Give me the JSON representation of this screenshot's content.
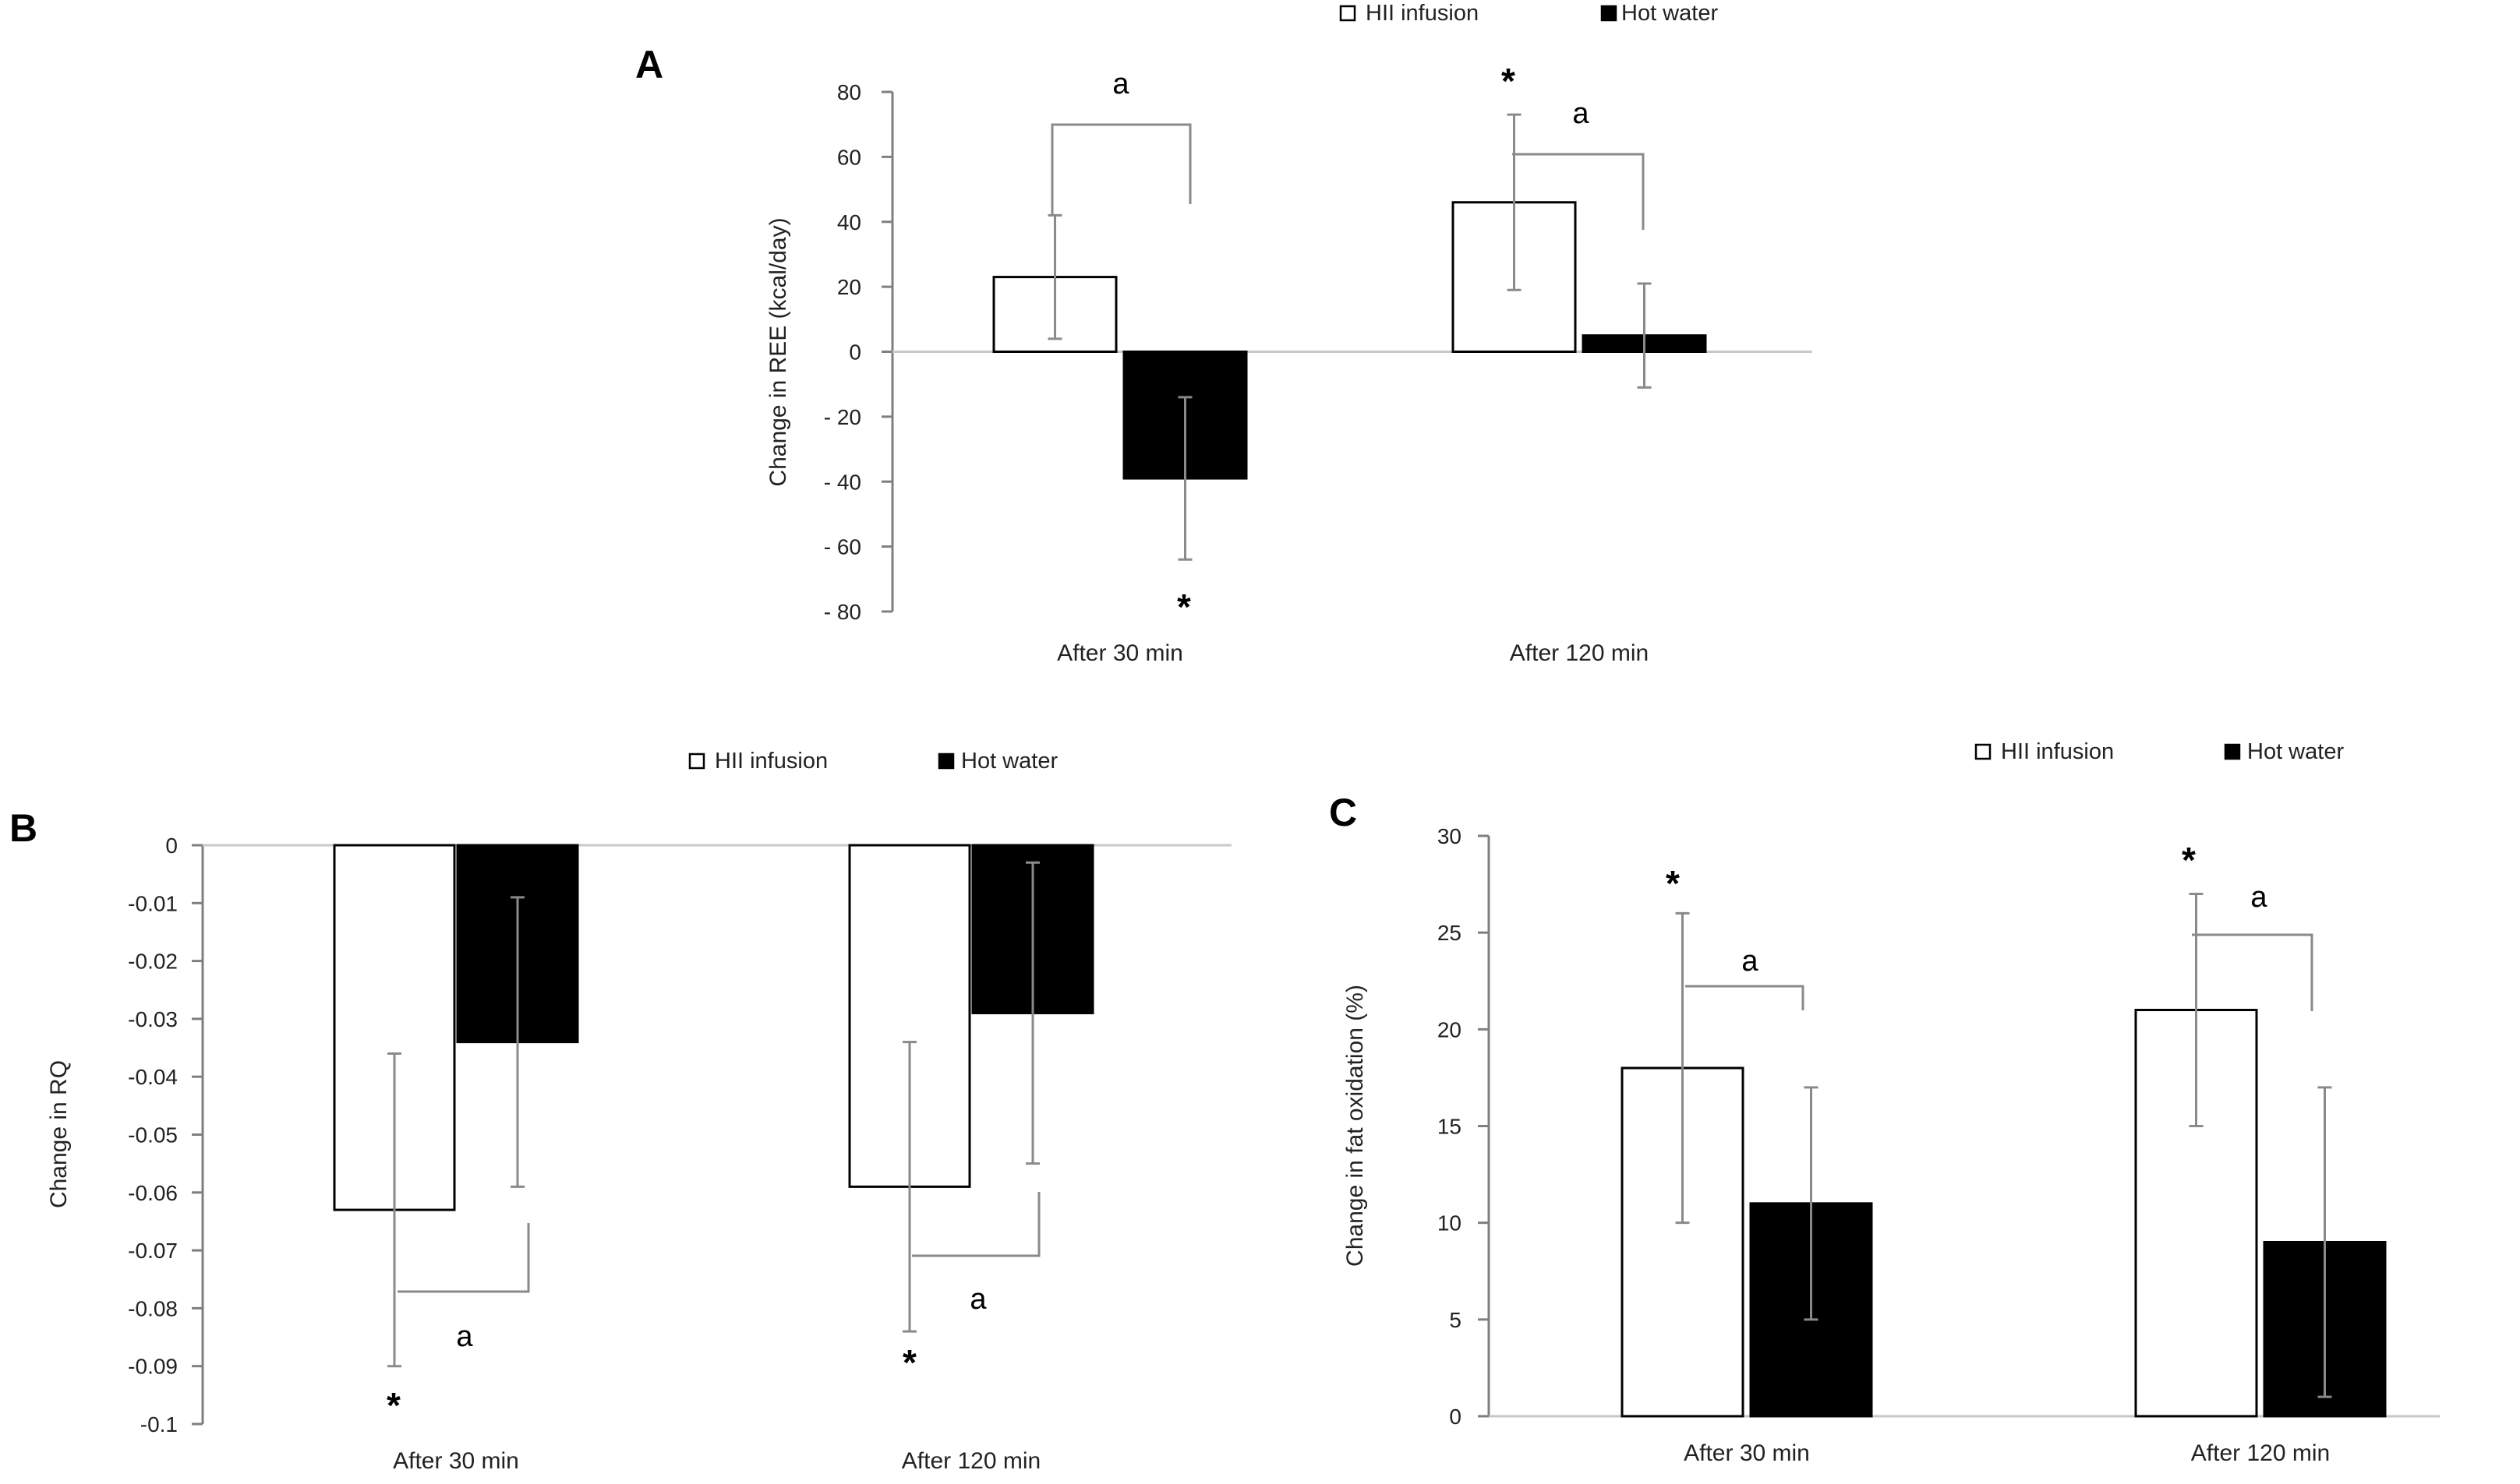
{
  "legend": {
    "series": [
      {
        "name": "HII infusion",
        "color": "#ffffff"
      },
      {
        "name": "Hot water",
        "color": "#000000"
      }
    ]
  },
  "chart_data": [
    {
      "panel": "A",
      "type": "bar",
      "categories": [
        "After 30 min",
        "After 120 min"
      ],
      "series": [
        {
          "name": "HII infusion",
          "values": [
            23,
            46
          ],
          "error_low": [
            4,
            19
          ],
          "error_high": [
            42,
            73
          ]
        },
        {
          "name": "Hot water",
          "values": [
            -39,
            5
          ],
          "error_low": [
            -64,
            -11
          ],
          "error_high": [
            -14,
            21
          ]
        }
      ],
      "ylabel": "Change in REE (kcal/day)",
      "ylim": [
        -80,
        80
      ],
      "yticks": [
        80,
        60,
        40,
        20,
        0,
        -20,
        -40,
        -60,
        -80
      ],
      "ytick_labels": [
        "80",
        "60",
        "40",
        "20",
        "0",
        "- 20",
        "- 40",
        "- 60",
        "- 80"
      ],
      "annotations": [
        {
          "text": "*",
          "category": "After 30 min",
          "series": "Hot water"
        },
        {
          "text": "*",
          "category": "After 120 min",
          "series": "HII infusion"
        },
        {
          "text": "a",
          "category": "After 30 min"
        },
        {
          "text": "a",
          "category": "After 120 min"
        }
      ]
    },
    {
      "panel": "B",
      "type": "bar",
      "categories": [
        "After 30 min",
        "After 120 min"
      ],
      "series": [
        {
          "name": "HII infusion",
          "values": [
            -0.063,
            -0.059
          ],
          "error_low": [
            -0.09,
            -0.084
          ],
          "error_high": [
            -0.036,
            -0.034
          ]
        },
        {
          "name": "Hot water",
          "values": [
            -0.034,
            -0.029
          ],
          "error_low": [
            -0.059,
            -0.055
          ],
          "error_high": [
            -0.009,
            -0.003
          ]
        }
      ],
      "ylabel": "Change in RQ",
      "ylim": [
        -0.1,
        0
      ],
      "yticks": [
        0,
        -0.01,
        -0.02,
        -0.03,
        -0.04,
        -0.05,
        -0.06,
        -0.07,
        -0.08,
        -0.09,
        -0.1
      ],
      "ytick_labels": [
        "0",
        "-0.01",
        "-0.02",
        "-0.03",
        "-0.04",
        "-0.05",
        "-0.06",
        "-0.07",
        "-0.08",
        "-0.09",
        "-0.1"
      ],
      "annotations": [
        {
          "text": "*",
          "category": "After 30 min",
          "series": "HII infusion"
        },
        {
          "text": "*",
          "category": "After 120 min",
          "series": "HII infusion"
        },
        {
          "text": "a",
          "category": "After 30 min"
        },
        {
          "text": "a",
          "category": "After 120 min"
        }
      ]
    },
    {
      "panel": "C",
      "type": "bar",
      "categories": [
        "After 30 min",
        "After 120 min"
      ],
      "series": [
        {
          "name": "HII infusion",
          "values": [
            18,
            21
          ],
          "error_low": [
            10,
            15
          ],
          "error_high": [
            26,
            27
          ]
        },
        {
          "name": "Hot water",
          "values": [
            11,
            9
          ],
          "error_low": [
            5,
            1
          ],
          "error_high": [
            17,
            17
          ]
        }
      ],
      "ylabel": "Change in fat oxidation (%)",
      "ylim": [
        0,
        30
      ],
      "yticks": [
        30,
        25,
        20,
        15,
        10,
        5,
        0
      ],
      "ytick_labels": [
        "30",
        "25",
        "20",
        "15",
        "10",
        "5",
        "0"
      ],
      "annotations": [
        {
          "text": "*",
          "category": "After 30 min",
          "series": "HII infusion"
        },
        {
          "text": "*",
          "category": "After 120 min",
          "series": "HII infusion"
        },
        {
          "text": "a",
          "category": "After 30 min"
        },
        {
          "text": "a",
          "category": "After 120 min"
        }
      ]
    }
  ]
}
